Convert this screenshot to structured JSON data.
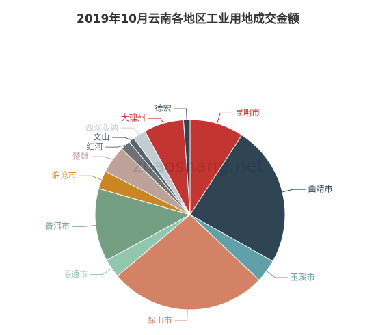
{
  "chart_data": {
    "type": "pie",
    "title": "2019年10月云南各地区工业用地成交金额",
    "watermark": "zhaoshang.net",
    "categories": [
      "昆明市",
      "曲靖市",
      "玉溪市",
      "保山市",
      "昭通市",
      "普洱市",
      "临沧市",
      "楚雄",
      "红河",
      "文山",
      "西双版纳",
      "大理州",
      "德宏"
    ],
    "values": [
      9.2,
      24,
      3.9,
      26.8,
      3.2,
      12.4,
      3.1,
      4.7,
      1.7,
      1.0,
      2.2,
      6.8,
      1.1
    ],
    "colors": [
      "#c23531",
      "#2f4554",
      "#61a0a8",
      "#d48265",
      "#91c7ae",
      "#749f83",
      "#ca8622",
      "#bda29a",
      "#6e7074",
      "#546570",
      "#c4ccd3",
      "#c23531",
      "#2f4554"
    ]
  }
}
